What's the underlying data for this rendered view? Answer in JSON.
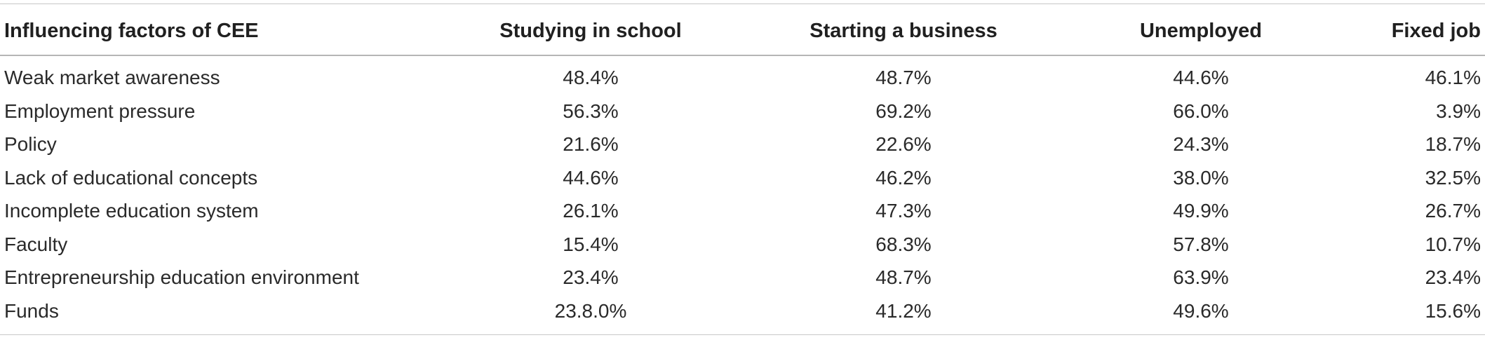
{
  "table": {
    "columns": [
      "Influencing factors of CEE",
      "Studying in school",
      "Starting a business",
      "Unemployed",
      "Fixed job"
    ],
    "rows": [
      [
        "Weak market awareness",
        "48.4%",
        "48.7%",
        "44.6%",
        "46.1%"
      ],
      [
        "Employment pressure",
        "56.3%",
        "69.2%",
        "66.0%",
        "3.9%"
      ],
      [
        "Policy",
        "21.6%",
        "22.6%",
        "24.3%",
        "18.7%"
      ],
      [
        "Lack of educational concepts",
        "44.6%",
        "46.2%",
        "38.0%",
        "32.5%"
      ],
      [
        "Incomplete education system",
        "26.1%",
        "47.3%",
        "49.9%",
        "26.7%"
      ],
      [
        "Faculty",
        "15.4%",
        "68.3%",
        "57.8%",
        "10.7%"
      ],
      [
        "Entrepreneurship education environment",
        "23.4%",
        "48.7%",
        "63.9%",
        "23.4%"
      ],
      [
        "Funds",
        "23.8.0%",
        "41.2%",
        "49.6%",
        "15.6%"
      ]
    ]
  }
}
